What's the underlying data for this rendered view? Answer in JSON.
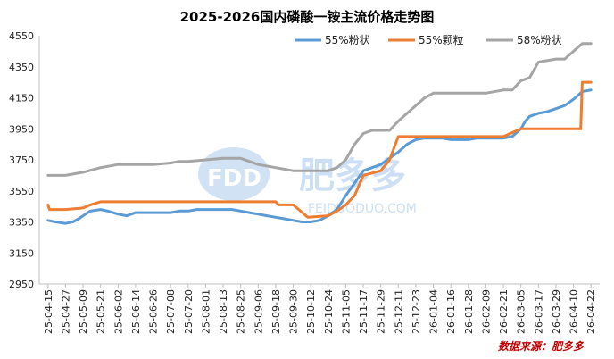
{
  "chart_data": {
    "type": "line",
    "title": "2025-2026国内磷酸一铵主流价格走势图",
    "xlabel": "",
    "ylabel": "",
    "ylim": [
      2950,
      4550
    ],
    "yticks": [
      2950,
      3150,
      3350,
      3550,
      3750,
      3950,
      4150,
      4350,
      4550
    ],
    "xticks": [
      "25-04-15",
      "25-04-27",
      "25-05-09",
      "25-05-21",
      "25-06-02",
      "25-06-14",
      "25-06-26",
      "25-07-08",
      "25-07-20",
      "25-08-01",
      "25-08-13",
      "25-08-25",
      "25-09-06",
      "25-09-18",
      "25-09-30",
      "25-10-12",
      "25-10-24",
      "25-11-05",
      "25-11-17",
      "25-11-29",
      "25-12-11",
      "25-12-23",
      "26-01-04",
      "26-01-16",
      "26-01-28",
      "26-02-09",
      "26-02-21",
      "26-03-05",
      "26-03-17",
      "26-03-29",
      "26-04-10",
      "26-04-22"
    ],
    "grid": false,
    "legend_position": "top-right",
    "series": [
      {
        "name": "55%粉状",
        "color": "#5b9bd5",
        "x": [
          "25-04-15",
          "25-04-20",
          "25-04-27",
          "25-05-02",
          "25-05-06",
          "25-05-09",
          "25-05-14",
          "25-05-21",
          "25-05-26",
          "25-06-02",
          "25-06-08",
          "25-06-14",
          "25-06-20",
          "25-06-26",
          "25-07-02",
          "25-07-08",
          "25-07-14",
          "25-07-20",
          "25-07-26",
          "25-08-01",
          "25-08-07",
          "25-08-13",
          "25-08-19",
          "25-08-25",
          "25-08-31",
          "25-09-06",
          "25-09-12",
          "25-09-18",
          "25-09-24",
          "25-09-30",
          "25-10-06",
          "25-10-12",
          "25-10-18",
          "25-10-24",
          "25-10-30",
          "25-11-05",
          "25-11-11",
          "25-11-17",
          "25-11-23",
          "25-11-29",
          "25-12-05",
          "25-12-11",
          "25-12-17",
          "25-12-23",
          "25-12-29",
          "26-01-04",
          "26-01-10",
          "26-01-16",
          "26-01-22",
          "26-01-28",
          "26-02-03",
          "26-02-09",
          "26-02-15",
          "26-02-21",
          "26-02-27",
          "26-03-05",
          "26-03-08",
          "26-03-11",
          "26-03-17",
          "26-03-23",
          "26-03-29",
          "26-04-04",
          "26-04-10",
          "26-04-16",
          "26-04-22"
        ],
        "values": [
          3360,
          3350,
          3340,
          3350,
          3370,
          3390,
          3420,
          3430,
          3420,
          3400,
          3390,
          3410,
          3410,
          3410,
          3410,
          3410,
          3420,
          3420,
          3430,
          3430,
          3430,
          3430,
          3430,
          3420,
          3410,
          3400,
          3390,
          3380,
          3370,
          3360,
          3350,
          3350,
          3360,
          3390,
          3430,
          3520,
          3600,
          3680,
          3700,
          3720,
          3760,
          3800,
          3850,
          3880,
          3890,
          3890,
          3890,
          3880,
          3880,
          3880,
          3890,
          3890,
          3890,
          3890,
          3900,
          3950,
          4000,
          4030,
          4050,
          4060,
          4080,
          4100,
          4140,
          4190,
          4200
        ]
      },
      {
        "name": "55%颗粒",
        "color": "#ed7d31",
        "x": [
          "25-04-15",
          "25-04-16",
          "25-04-27",
          "25-05-09",
          "25-05-14",
          "25-05-21",
          "25-06-02",
          "25-06-03",
          "25-06-14",
          "25-06-26",
          "25-07-08",
          "25-07-20",
          "25-08-01",
          "25-08-13",
          "25-08-25",
          "25-09-06",
          "25-09-18",
          "25-09-20",
          "25-09-30",
          "25-10-10",
          "25-10-24",
          "25-10-30",
          "25-11-05",
          "25-11-11",
          "25-11-17",
          "25-11-29",
          "25-12-05",
          "25-12-11",
          "25-12-17",
          "25-12-23",
          "26-01-04",
          "26-01-16",
          "26-01-28",
          "26-02-09",
          "26-02-21",
          "26-03-05",
          "26-03-17",
          "26-03-29",
          "26-04-10",
          "26-04-15",
          "26-04-16",
          "26-04-22"
        ],
        "values": [
          3460,
          3430,
          3430,
          3440,
          3460,
          3480,
          3480,
          3480,
          3480,
          3480,
          3480,
          3480,
          3480,
          3480,
          3480,
          3480,
          3480,
          3460,
          3460,
          3380,
          3390,
          3420,
          3460,
          3520,
          3650,
          3680,
          3750,
          3900,
          3900,
          3900,
          3900,
          3900,
          3900,
          3900,
          3900,
          3950,
          3950,
          3950,
          3950,
          3950,
          4250,
          4250
        ]
      },
      {
        "name": "58%粉状",
        "color": "#a5a5a5",
        "x": [
          "25-04-15",
          "25-04-27",
          "25-05-09",
          "25-05-21",
          "25-06-02",
          "25-06-14",
          "25-06-26",
          "25-07-08",
          "25-07-14",
          "25-07-20",
          "25-08-01",
          "25-08-13",
          "25-08-25",
          "25-09-06",
          "25-09-18",
          "25-09-30",
          "25-10-12",
          "25-10-24",
          "25-10-30",
          "25-11-05",
          "25-11-11",
          "25-11-17",
          "25-11-23",
          "25-11-29",
          "25-12-05",
          "25-12-11",
          "25-12-17",
          "25-12-23",
          "25-12-29",
          "26-01-04",
          "26-01-16",
          "26-01-28",
          "26-02-09",
          "26-02-21",
          "26-02-27",
          "26-03-05",
          "26-03-11",
          "26-03-17",
          "26-03-29",
          "26-04-04",
          "26-04-10",
          "26-04-16",
          "26-04-22"
        ],
        "values": [
          3650,
          3650,
          3670,
          3700,
          3720,
          3720,
          3720,
          3730,
          3740,
          3740,
          3750,
          3760,
          3760,
          3720,
          3700,
          3680,
          3680,
          3680,
          3700,
          3750,
          3850,
          3920,
          3940,
          3940,
          3940,
          4000,
          4050,
          4100,
          4150,
          4180,
          4180,
          4180,
          4180,
          4200,
          4200,
          4260,
          4280,
          4380,
          4400,
          4400,
          4450,
          4500,
          4500
        ]
      }
    ],
    "source_note": "数据来源：肥多多"
  },
  "watermark": {
    "logo": "FDD",
    "name": "肥多多",
    "url": "FEIDUODUO.COM"
  }
}
